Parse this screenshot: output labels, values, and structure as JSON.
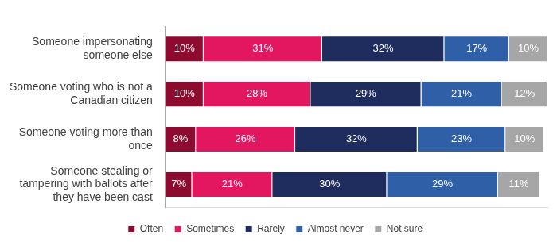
{
  "chart_data": {
    "type": "bar",
    "orientation": "horizontal",
    "stacked": true,
    "categories": [
      "Someone impersonating someone else",
      "Someone voting who is not a Canadian citizen",
      "Someone voting more than once",
      "Someone stealing or tampering with ballots after they have been cast"
    ],
    "series": [
      {
        "name": "Often",
        "color": "#8c0b2f",
        "values": [
          10,
          10,
          8,
          7
        ],
        "value_labels": [
          "10%",
          "10%",
          "8%",
          "7%"
        ]
      },
      {
        "name": "Sometimes",
        "color": "#e2175f",
        "values": [
          31,
          28,
          26,
          21
        ],
        "value_labels": [
          "31%",
          "28%",
          "26%",
          "21%"
        ]
      },
      {
        "name": "Rarely",
        "color": "#1f2c5e",
        "values": [
          32,
          29,
          32,
          30
        ],
        "value_labels": [
          "32%",
          "29%",
          "32%",
          "30%"
        ]
      },
      {
        "name": "Almost never",
        "color": "#2f5fa7",
        "values": [
          17,
          21,
          23,
          29
        ],
        "value_labels": [
          "17%",
          "21%",
          "23%",
          "29%"
        ]
      },
      {
        "name": "Not sure",
        "color": "#a6a6a6",
        "values": [
          10,
          12,
          10,
          11
        ],
        "value_labels": [
          "10%",
          "12%",
          "10%",
          "11%"
        ]
      }
    ],
    "xlim": [
      0,
      100
    ],
    "data_labels": true,
    "tick_labels": "y",
    "grid": false,
    "legend": "bottom"
  }
}
